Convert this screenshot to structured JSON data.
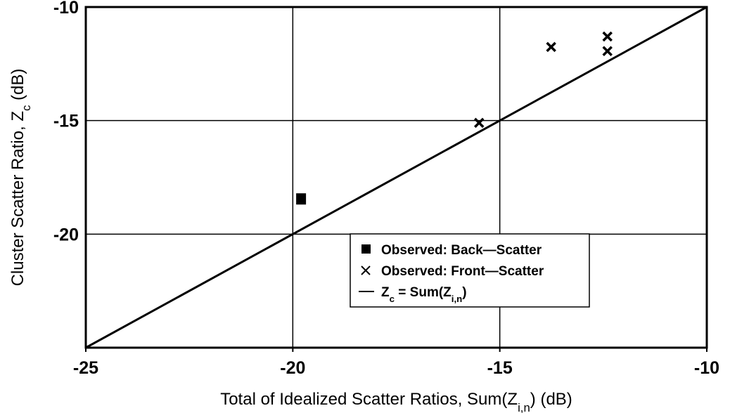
{
  "chart_data": {
    "type": "scatter",
    "x_label": [
      "Total of Idealized Scatter Ratios, Sum(Z",
      "i,n",
      ") (dB)"
    ],
    "y_label": [
      "Cluster Scatter Ratio, Z",
      "c",
      " (dB)"
    ],
    "xlim": [
      -25,
      -10
    ],
    "ylim": [
      -25,
      -10
    ],
    "xticks": [
      -25,
      -20,
      -15,
      -10
    ],
    "yticks": [
      -20,
      -15,
      -10
    ],
    "grid": true,
    "legend": "lower right",
    "series": [
      {
        "name": [
          "Observed: Back—Scatter"
        ],
        "marker": "square",
        "color": "#000000",
        "x": [
          -19.8
        ],
        "values": [
          -18.45
        ]
      },
      {
        "name": [
          "Observed: Front—Scatter"
        ],
        "marker": "x",
        "color": "#000000",
        "x": [
          -15.5,
          -13.76,
          -12.4,
          -12.4
        ],
        "values": [
          -15.1,
          -11.76,
          -11.3,
          -11.94
        ]
      },
      {
        "name": [
          "Z",
          "c",
          " = Sum(Z",
          "i,n",
          ")"
        ],
        "marker": "line",
        "color": "#000000",
        "x": [
          -25,
          -10
        ],
        "values": [
          -25,
          -10
        ]
      }
    ]
  }
}
